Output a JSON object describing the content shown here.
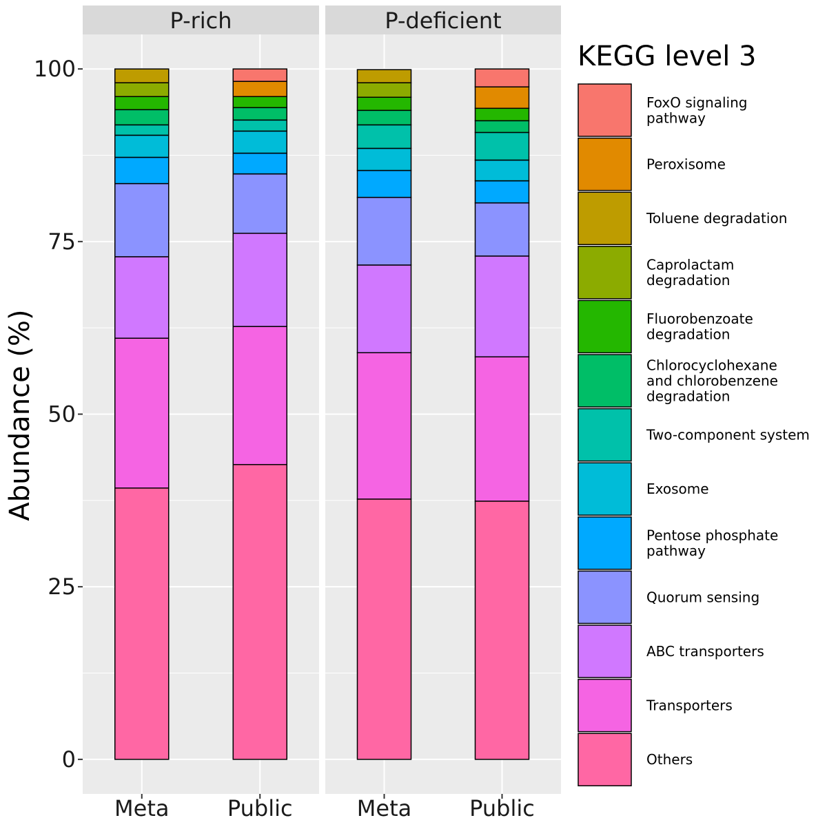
{
  "chart_data": {
    "type": "bar",
    "stacked": true,
    "ylabel": "Abundance (%)",
    "xlabel": "",
    "ylim": [
      -5,
      105
    ],
    "yticks": [
      0,
      25,
      50,
      75,
      100
    ],
    "grid": true,
    "legend_title": "KEGG level 3",
    "legend_position": "right",
    "categories": [
      "Meta",
      "Public"
    ],
    "panels": [
      "P-rich",
      "P-deficient"
    ],
    "series": [
      {
        "name": "Others",
        "color": "#FF67A4",
        "values": {
          "P-rich": [
            39.3,
            42.7
          ],
          "P-deficient": [
            37.7,
            37.4
          ]
        }
      },
      {
        "name": "Transporters",
        "color": "#F564E3",
        "values": {
          "P-rich": [
            21.7,
            20.0
          ],
          "P-deficient": [
            21.2,
            20.9
          ]
        }
      },
      {
        "name": "ABC transporters",
        "color": "#D078FF",
        "values": {
          "P-rich": [
            11.8,
            13.5
          ],
          "P-deficient": [
            12.7,
            14.6
          ]
        }
      },
      {
        "name": "Quorum sensing",
        "color": "#8B93FF",
        "values": {
          "P-rich": [
            10.6,
            8.6
          ],
          "P-deficient": [
            9.8,
            7.7
          ]
        }
      },
      {
        "name": "Pentose phosphate pathway",
        "color": "#00A9FF",
        "values": {
          "P-rich": [
            3.8,
            3.0
          ],
          "P-deficient": [
            3.9,
            3.2
          ]
        }
      },
      {
        "name": "Exosome",
        "color": "#00BCD8",
        "values": {
          "P-rich": [
            3.2,
            3.2
          ],
          "P-deficient": [
            3.2,
            3.0
          ]
        }
      },
      {
        "name": "Two-component system",
        "color": "#00C1AA",
        "values": {
          "P-rich": [
            1.5,
            1.6
          ],
          "P-deficient": [
            3.4,
            4.0
          ]
        }
      },
      {
        "name": "Chlorocyclohexane and chlorobenzene degradation",
        "color": "#00BE67",
        "values": {
          "P-rich": [
            2.2,
            1.8
          ],
          "P-deficient": [
            2.1,
            1.7
          ]
        }
      },
      {
        "name": "Fluorobenzoate degradation",
        "color": "#24B700",
        "values": {
          "P-rich": [
            1.9,
            1.6
          ],
          "P-deficient": [
            1.9,
            1.8
          ]
        }
      },
      {
        "name": "Caprolactam degradation",
        "color": "#8CAB00",
        "values": {
          "P-rich": [
            2.0,
            0.0
          ],
          "P-deficient": [
            2.1,
            0.0
          ]
        }
      },
      {
        "name": "Toluene degradation",
        "color": "#BE9C00",
        "values": {
          "P-rich": [
            2.0,
            0.0
          ],
          "P-deficient": [
            1.9,
            0.0
          ]
        }
      },
      {
        "name": "Peroxisome",
        "color": "#E18A00",
        "values": {
          "P-rich": [
            0.0,
            2.2
          ],
          "P-deficient": [
            0.0,
            3.1
          ]
        }
      },
      {
        "name": "FoxO signaling pathway",
        "color": "#F8766D",
        "values": {
          "P-rich": [
            0.0,
            1.8
          ],
          "P-deficient": [
            0.0,
            2.6
          ]
        }
      }
    ],
    "legend_labels": [
      [
        "FoxO signaling",
        "pathway"
      ],
      [
        "Peroxisome"
      ],
      [
        "Toluene degradation"
      ],
      [
        "Caprolactam",
        "degradation"
      ],
      [
        "Fluorobenzoate",
        "degradation"
      ],
      [
        "Chlorocyclohexane",
        "and chlorobenzene",
        "degradation"
      ],
      [
        "Two-component system"
      ],
      [
        "Exosome"
      ],
      [
        "Pentose phosphate",
        "pathway"
      ],
      [
        "Quorum sensing"
      ],
      [
        "ABC transporters"
      ],
      [
        "Transporters"
      ],
      [
        "Others"
      ]
    ]
  }
}
